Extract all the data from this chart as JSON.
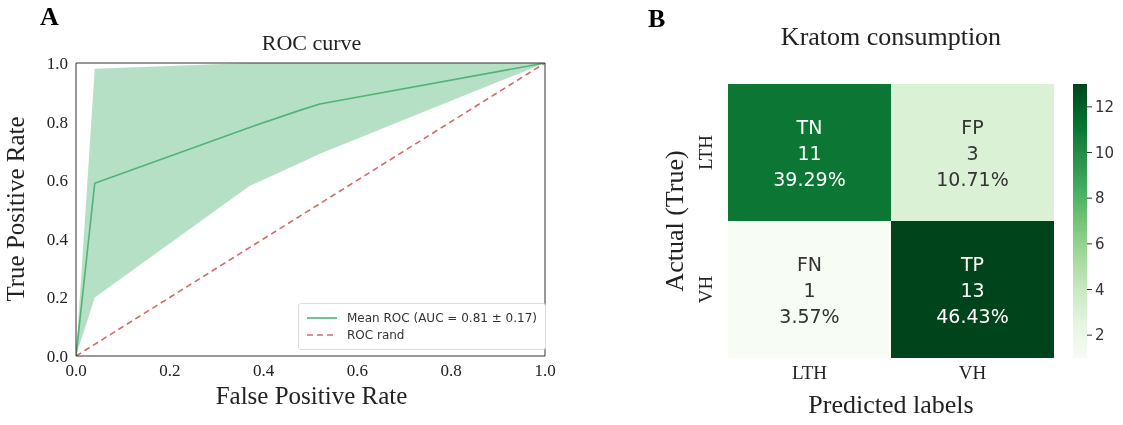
{
  "chart_data": [
    {
      "type": "line",
      "title": "ROC curve",
      "xlabel": "False Positive Rate",
      "ylabel": "True Positive Rate",
      "annotations": [
        "A"
      ],
      "xlim": [
        0,
        1
      ],
      "ylim": [
        0,
        1
      ],
      "xticks": [
        {
          "value": 0,
          "label": "0.0"
        },
        0.2,
        0.4,
        0.6,
        0.8,
        {
          "value": 1,
          "label": "1.0"
        }
      ],
      "yticks": [
        {
          "value": 0,
          "label": "0.0"
        },
        0.2,
        0.4,
        0.6,
        0.8,
        {
          "value": 1,
          "label": "1.0"
        }
      ],
      "legend": "bottom right",
      "series": [
        {
          "name": "Mean ROC (AUC = 0.81 ± 0.17)",
          "color": "#4fb476",
          "line_style": "solid",
          "x": [
            0,
            0.04,
            0.37,
            0.48,
            0.52,
            1
          ],
          "values": [
            0,
            0.59,
            0.78,
            0.84,
            0.86,
            1
          ],
          "lower": [
            0,
            0.2,
            0.58,
            0.66,
            0.69,
            1
          ],
          "upper": [
            0,
            0.98,
            1.0,
            1.0,
            1.0,
            1.0
          ]
        },
        {
          "name": "ROC rand",
          "color": "#d46a66",
          "line_style": "dashed",
          "x": [
            0,
            1
          ],
          "values": [
            0,
            1
          ]
        }
      ]
    },
    {
      "type": "heatmap",
      "title": "Kratom consumption",
      "xlabel": "Predicted labels",
      "ylabel": "Actual (True)",
      "annotations": [
        "B"
      ],
      "categories": [
        "LTH",
        "VH"
      ],
      "y_categories": [
        "LTH",
        "VH"
      ],
      "cells": [
        [
          11,
          3
        ],
        [
          1,
          13
        ]
      ],
      "cell_labels": [
        [
          "TN\n11\n39.29%",
          "FP\n3\n10.71%"
        ],
        [
          "FN\n1\n3.57%",
          "TP\n13\n46.43%"
        ]
      ],
      "clim": [
        1,
        13
      ],
      "cticks": [
        2,
        4,
        6,
        8,
        10,
        12
      ]
    }
  ]
}
